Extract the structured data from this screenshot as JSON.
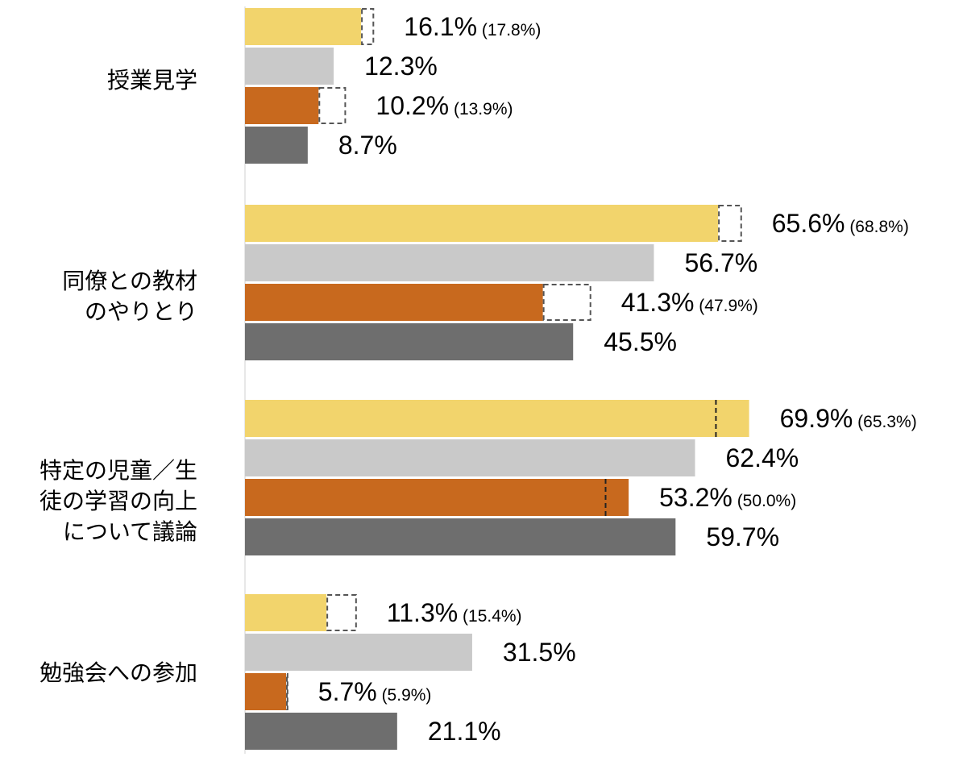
{
  "chart_data": {
    "type": "bar",
    "orientation": "horizontal",
    "xlim": [
      0,
      100
    ],
    "grid": false,
    "legend": "none",
    "colors": [
      "#F2D46C",
      "#C9C9C9",
      "#C8691E",
      "#6E6E6E"
    ],
    "categories": [
      {
        "label": "授業見学",
        "bars": [
          {
            "value": 16.1,
            "label": "16.1%",
            "previous": 17.8,
            "previous_label": "(17.8%)"
          },
          {
            "value": 12.3,
            "label": "12.3%"
          },
          {
            "value": 10.2,
            "label": "10.2%",
            "previous": 13.9,
            "previous_label": "(13.9%)"
          },
          {
            "value": 8.7,
            "label": "8.7%"
          }
        ]
      },
      {
        "label": "同僚との教材\nのやりとり",
        "bars": [
          {
            "value": 65.6,
            "label": "65.6%",
            "previous": 68.8,
            "previous_label": "(68.8%)"
          },
          {
            "value": 56.7,
            "label": "56.7%"
          },
          {
            "value": 41.3,
            "label": "41.3%",
            "previous": 47.9,
            "previous_label": "(47.9%)"
          },
          {
            "value": 45.5,
            "label": "45.5%"
          }
        ]
      },
      {
        "label": "特定の児童／生\n徒の学習の向上\nについて議論",
        "bars": [
          {
            "value": 69.9,
            "label": "69.9%",
            "previous": 65.3,
            "previous_label": "(65.3%)"
          },
          {
            "value": 62.4,
            "label": "62.4%"
          },
          {
            "value": 53.2,
            "label": "53.2%",
            "previous": 50.0,
            "previous_label": "(50.0%)"
          },
          {
            "value": 59.7,
            "label": "59.7%"
          }
        ]
      },
      {
        "label": "勉強会への参加",
        "bars": [
          {
            "value": 11.3,
            "label": "11.3%",
            "previous": 15.4,
            "previous_label": "(15.4%)"
          },
          {
            "value": 31.5,
            "label": "31.5%"
          },
          {
            "value": 5.7,
            "label": "5.7%",
            "previous": 5.9,
            "previous_label": "(5.9%)"
          },
          {
            "value": 21.1,
            "label": "21.1%"
          }
        ]
      }
    ]
  }
}
